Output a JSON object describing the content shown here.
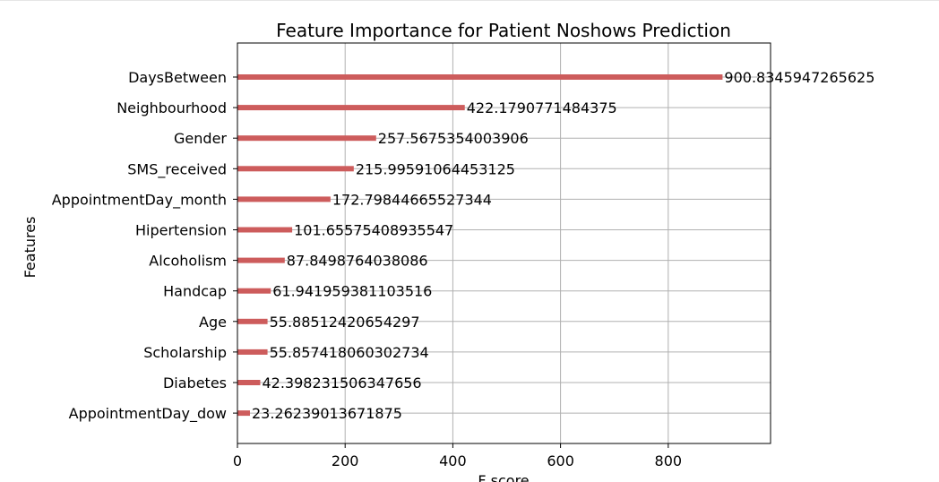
{
  "chart_data": {
    "type": "bar",
    "orientation": "horizontal",
    "title": "Feature Importance for Patient Noshows Prediction",
    "xlabel": "F score",
    "ylabel": "Features",
    "xlim": [
      0,
      990
    ],
    "xticks": [
      0,
      200,
      400,
      600,
      800
    ],
    "grid": true,
    "bar_color": "#cd5c5c",
    "categories": [
      "DaysBetween",
      "Neighbourhood",
      "Gender",
      "SMS_received",
      "AppointmentDay_month",
      "Hipertension",
      "Alcoholism",
      "Handcap",
      "Age",
      "Scholarship",
      "Diabetes",
      "AppointmentDay_dow"
    ],
    "values": [
      900.8345947265625,
      422.1790771484375,
      257.5675354003906,
      215.99591064453125,
      172.79844665527344,
      101.65575408935547,
      87.8498764038086,
      61.941959381103516,
      55.88512420654297,
      55.857418060302734,
      42.398231506347656,
      23.26239013671875
    ],
    "value_labels": [
      "900.8345947265625",
      "422.1790771484375",
      "257.5675354003906",
      "215.99591064453125",
      "172.79844665527344",
      "101.65575408935547",
      "87.8498764038086",
      "61.941959381103516",
      "55.88512420654297",
      "55.857418060302734",
      "42.398231506347656",
      "23.26239013671875"
    ]
  }
}
